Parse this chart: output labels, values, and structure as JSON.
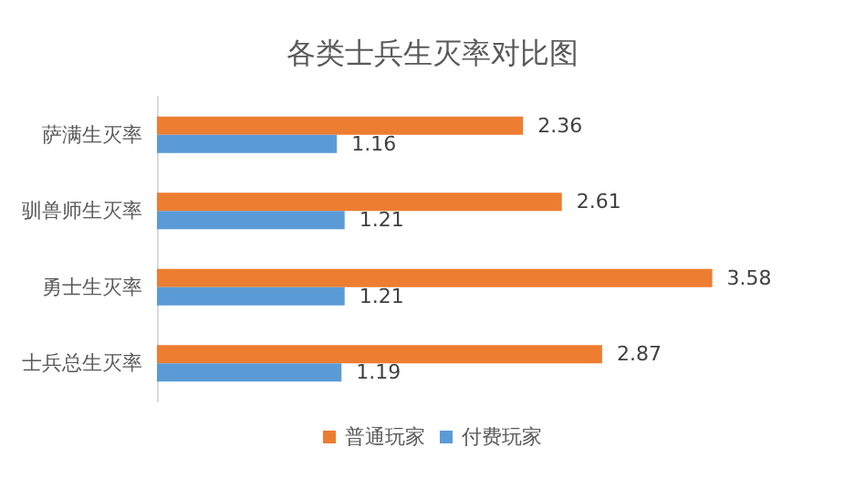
{
  "chart_data": {
    "type": "bar",
    "orientation": "horizontal",
    "title": "各类士兵生灭率对比图",
    "categories": [
      "萨满生灭率",
      "驯兽师生灭率",
      "勇士生灭率",
      "士兵总生灭率"
    ],
    "series": [
      {
        "name": "普通玩家",
        "color": "#ed7d31",
        "values": [
          2.36,
          2.61,
          3.58,
          2.87
        ]
      },
      {
        "name": "付费玩家",
        "color": "#5b9bd5",
        "values": [
          1.16,
          1.21,
          1.21,
          1.19
        ]
      }
    ],
    "data_labels": true,
    "legend": "bottom",
    "tick_labels": "y",
    "grid": false
  }
}
